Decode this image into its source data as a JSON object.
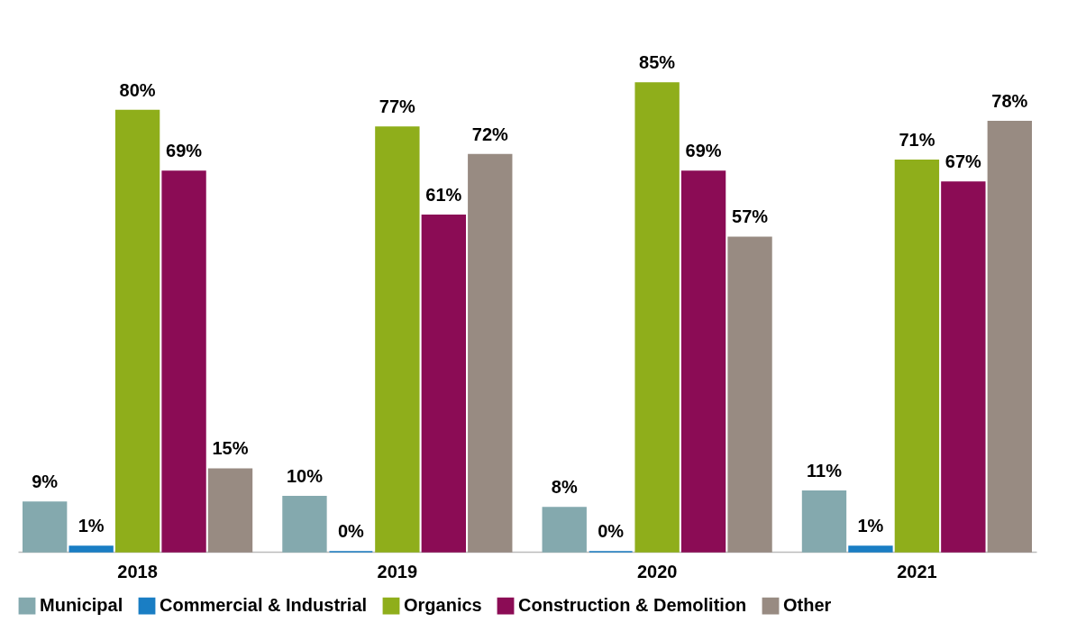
{
  "chart_data": {
    "type": "bar",
    "categories": [
      "2018",
      "2019",
      "2020",
      "2021"
    ],
    "series": [
      {
        "name": "Municipal",
        "color": "#84a9ae",
        "values": [
          9,
          10,
          8,
          11
        ],
        "value_labels": [
          "9%",
          "10%",
          "8%",
          "11%"
        ]
      },
      {
        "name": "Commercial & Industrial",
        "color": "#1a7ec4",
        "values": [
          1,
          0,
          0,
          1
        ],
        "value_labels": [
          "1%",
          "0%",
          "0%",
          "1%"
        ]
      },
      {
        "name": "Organics",
        "color": "#8fae1b",
        "values": [
          80,
          77,
          85,
          71
        ],
        "value_labels": [
          "80%",
          "77%",
          "85%",
          "71%"
        ]
      },
      {
        "name": "Construction & Demolition",
        "color": "#8b0c55",
        "values": [
          69,
          61,
          69,
          67
        ],
        "value_labels": [
          "69%",
          "61%",
          "69%",
          "67%"
        ]
      },
      {
        "name": "Other",
        "color": "#988b82",
        "values": [
          15,
          72,
          57,
          78
        ],
        "value_labels": [
          "15%",
          "72%",
          "57%",
          "78%"
        ]
      }
    ],
    "legend": "bottom",
    "grid": false
  }
}
